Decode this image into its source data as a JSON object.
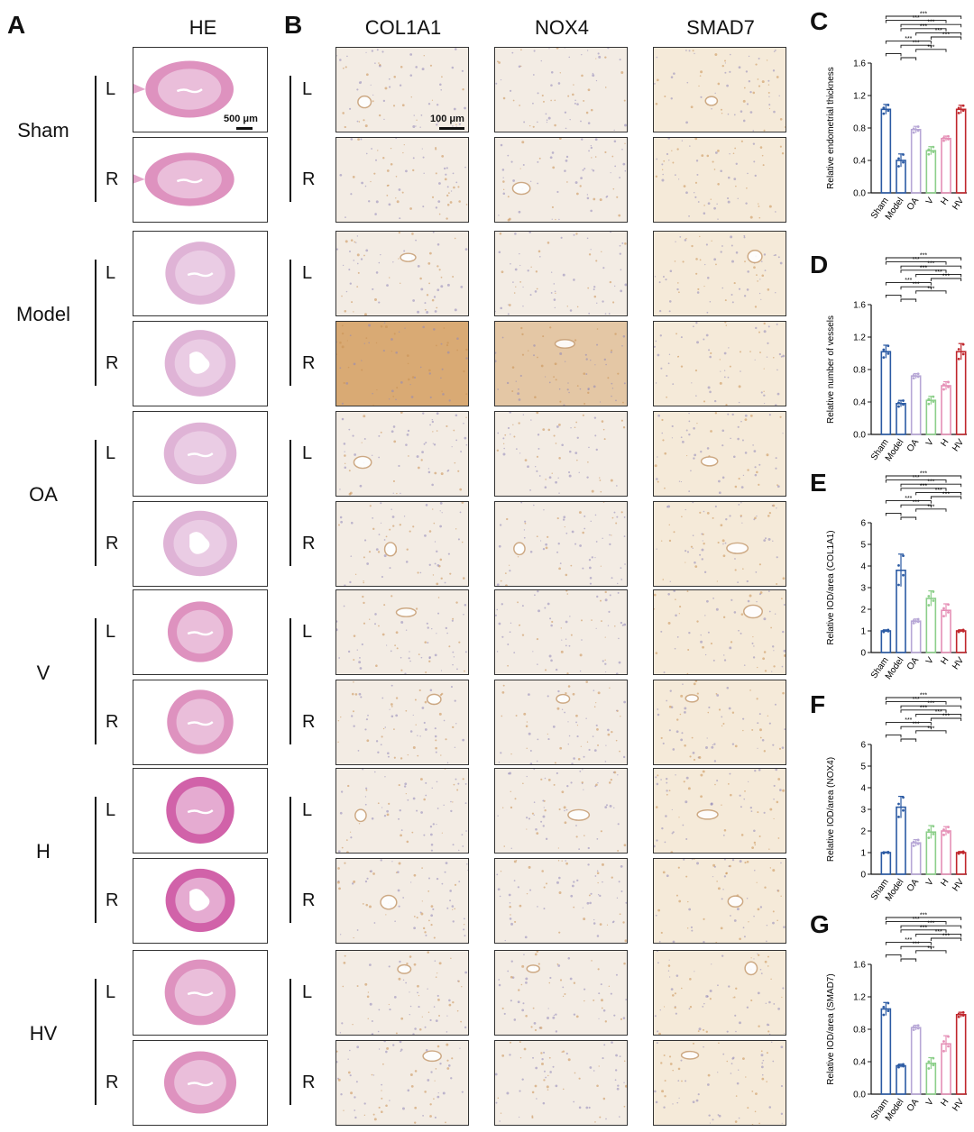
{
  "panels": {
    "A": "A",
    "B": "B",
    "C": "C",
    "D": "D",
    "E": "E",
    "F": "F",
    "G": "G"
  },
  "columns": {
    "he": "HE",
    "col1a1": "COL1A1",
    "nox4": "NOX4",
    "smad7": "SMAD7"
  },
  "groups": [
    "Sham",
    "Model",
    "OA",
    "V",
    "H",
    "HV"
  ],
  "sides": {
    "left": "L",
    "right": "R"
  },
  "scale_bars": {
    "he": "500 μm",
    "ihc": "100 μm"
  },
  "colors": {
    "he_pink": "#d87fb4",
    "he_light": "#f1dcec",
    "ihc_bg": "#f3ece4",
    "ihc_brown": "#c98f52",
    "bar_colors": [
      "#2b5aa3",
      "#2b5aa3",
      "#b7a7d6",
      "#8ccf8a",
      "#e58fb6",
      "#c0272d"
    ]
  },
  "chart_data": [
    {
      "panel": "C",
      "type": "bar",
      "categories": [
        "Sham",
        "Model",
        "OA",
        "V",
        "H",
        "HV"
      ],
      "values": [
        1.03,
        0.4,
        0.78,
        0.52,
        0.67,
        1.03
      ],
      "errors": [
        0.06,
        0.08,
        0.04,
        0.05,
        0.03,
        0.05
      ],
      "ylabel": "Relative endometrial thickness",
      "ylim": [
        0,
        1.6
      ],
      "yticks": [
        0.0,
        0.4,
        0.8,
        1.2,
        1.6
      ],
      "ytick_labels": [
        "0.0",
        "0.4",
        "0.8",
        "1.2",
        "1.6"
      ],
      "sig_label": "***"
    },
    {
      "panel": "D",
      "type": "bar",
      "categories": [
        "Sham",
        "Model",
        "OA",
        "V",
        "H",
        "HV"
      ],
      "values": [
        1.02,
        0.38,
        0.72,
        0.42,
        0.6,
        1.02
      ],
      "errors": [
        0.08,
        0.04,
        0.03,
        0.05,
        0.05,
        0.1
      ],
      "ylabel": "Relative number of vessels",
      "ylim": [
        0,
        1.6
      ],
      "yticks": [
        0.0,
        0.4,
        0.8,
        1.2,
        1.6
      ],
      "ytick_labels": [
        "0.0",
        "0.4",
        "0.8",
        "1.2",
        "1.6"
      ],
      "sig_label": "***"
    },
    {
      "panel": "E",
      "type": "bar",
      "categories": [
        "Sham",
        "Model",
        "OA",
        "V",
        "H",
        "HV"
      ],
      "values": [
        1.0,
        3.8,
        1.45,
        2.5,
        1.95,
        1.0
      ],
      "errors": [
        0.05,
        0.75,
        0.1,
        0.35,
        0.3,
        0.05
      ],
      "ylabel": "Relative IOD/area (COL1A1)",
      "ylim": [
        0,
        6
      ],
      "yticks": [
        0,
        1,
        2,
        3,
        4,
        5,
        6
      ],
      "ytick_labels": [
        "0",
        "1",
        "2",
        "3",
        "4",
        "5",
        "6"
      ],
      "sig_label": "***"
    },
    {
      "panel": "F",
      "type": "bar",
      "categories": [
        "Sham",
        "Model",
        "OA",
        "V",
        "H",
        "HV"
      ],
      "values": [
        1.0,
        3.1,
        1.45,
        1.95,
        2.0,
        1.0
      ],
      "errors": [
        0.03,
        0.5,
        0.15,
        0.3,
        0.2,
        0.05
      ],
      "ylabel": "Relative IOD/area (NOX4)",
      "ylim": [
        0,
        6
      ],
      "yticks": [
        0,
        1,
        2,
        3,
        4,
        5,
        6
      ],
      "ytick_labels": [
        "0",
        "1",
        "2",
        "3",
        "4",
        "5",
        "6"
      ],
      "sig_label": "***"
    },
    {
      "panel": "G",
      "type": "bar",
      "categories": [
        "Sham",
        "Model",
        "OA",
        "V",
        "H",
        "HV"
      ],
      "values": [
        1.05,
        0.35,
        0.82,
        0.38,
        0.62,
        0.98
      ],
      "errors": [
        0.08,
        0.02,
        0.03,
        0.07,
        0.1,
        0.03
      ],
      "ylabel": "Relative IOD/area (SMAD7)",
      "ylim": [
        0,
        1.6
      ],
      "yticks": [
        0.0,
        0.4,
        0.8,
        1.2,
        1.6
      ],
      "ytick_labels": [
        "0.0",
        "0.4",
        "0.8",
        "1.2",
        "1.6"
      ],
      "sig_label": "***"
    }
  ]
}
